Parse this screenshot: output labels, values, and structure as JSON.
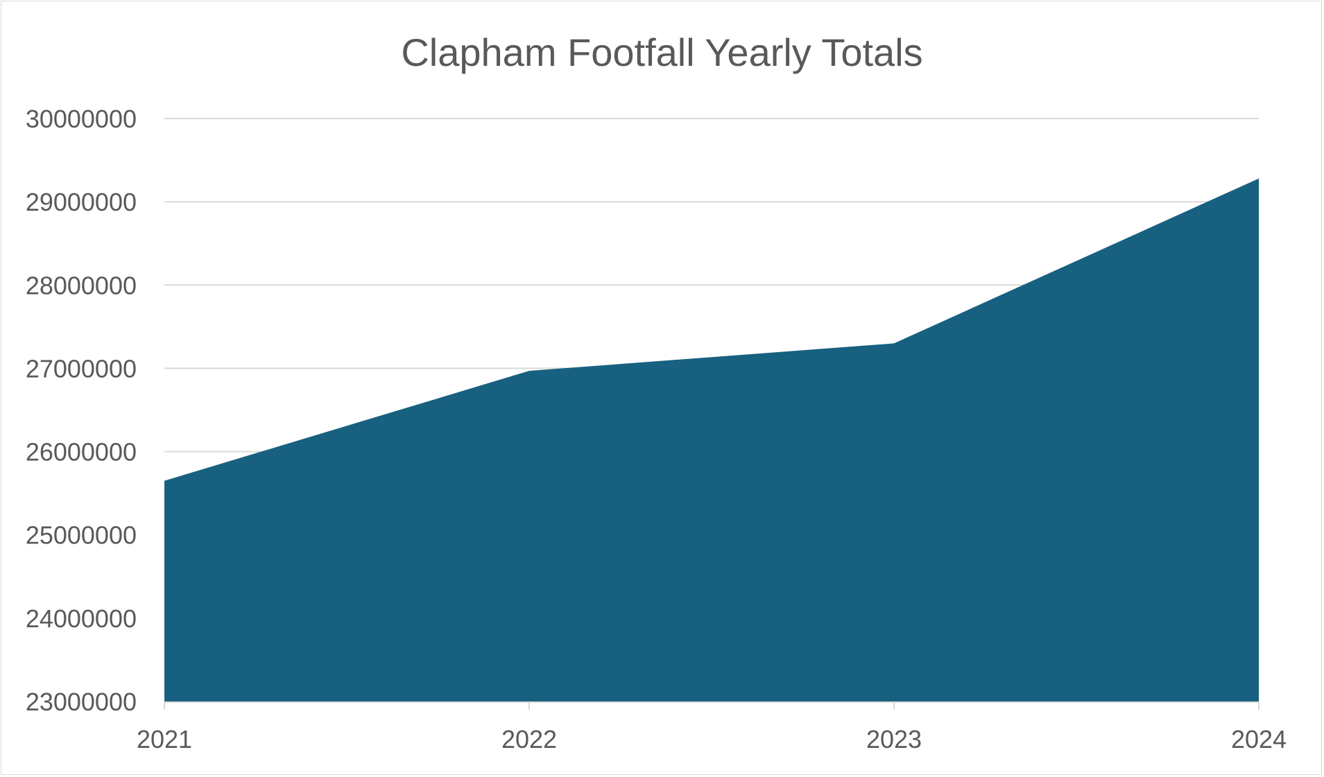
{
  "chart_data": {
    "type": "area",
    "title": "Clapham Footfall Yearly Totals",
    "xlabel": "",
    "ylabel": "",
    "categories": [
      "2021",
      "2022",
      "2023",
      "2024"
    ],
    "series": [
      {
        "values": [
          25650000,
          26970000,
          27300000,
          29280000
        ]
      }
    ],
    "ylim": [
      23000000,
      30000000
    ],
    "yticks": [
      "23000000",
      "24000000",
      "25000000",
      "26000000",
      "27000000",
      "28000000",
      "29000000",
      "30000000"
    ],
    "grid": true,
    "legend": "none",
    "colors": {
      "fill": "#186080",
      "grid": "#d9d9d9",
      "text": "#595959"
    }
  }
}
